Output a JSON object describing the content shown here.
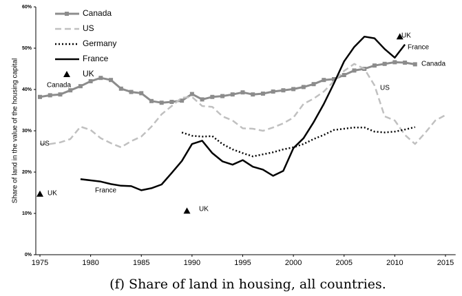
{
  "chart_data": {
    "type": "line",
    "ylabel": "Share of land in the value of the housing capital",
    "caption": "(f) Share of land in housing, all countries.",
    "xlim": [
      1975,
      2016
    ],
    "xticks": [
      1975,
      1980,
      1985,
      1990,
      1995,
      2000,
      2005,
      2010,
      2015
    ],
    "ylim": [
      0,
      60
    ],
    "yticks": [
      {
        "value": 0,
        "label": "0%"
      },
      {
        "value": 10,
        "label": "10%"
      },
      {
        "value": 20,
        "label": "20%"
      },
      {
        "value": 30,
        "label": "30%"
      },
      {
        "value": 40,
        "label": "40%"
      },
      {
        "value": 50,
        "label": "50%"
      },
      {
        "value": 60,
        "label": "60%"
      }
    ],
    "series": [
      {
        "name": "Canada",
        "color": "#8c8c8c",
        "style": "solid",
        "marker": "square",
        "x": [
          1975,
          1976,
          1977,
          1978,
          1979,
          1980,
          1981,
          1982,
          1983,
          1984,
          1985,
          1986,
          1987,
          1988,
          1989,
          1990,
          1991,
          1992,
          1993,
          1994,
          1995,
          1996,
          1997,
          1998,
          1999,
          2000,
          2001,
          2002,
          2003,
          2004,
          2005,
          2006,
          2007,
          2008,
          2009,
          2010,
          2011,
          2012
        ],
        "values": [
          38.2,
          38.6,
          38.8,
          39.8,
          40.8,
          42,
          42.8,
          42.3,
          40.2,
          39.4,
          39.1,
          37.2,
          36.8,
          37,
          37.3,
          38.9,
          37.6,
          38.2,
          38.4,
          38.8,
          39.3,
          38.8,
          39,
          39.5,
          39.8,
          40.1,
          40.6,
          41.3,
          42.3,
          42.5,
          43.5,
          44.6,
          45,
          45.8,
          46.2,
          46.6,
          46.5,
          46.1
        ]
      },
      {
        "name": "US",
        "color": "#c0c0c0",
        "style": "dashed",
        "marker": "none",
        "x": [
          1975,
          1976,
          1977,
          1978,
          1979,
          1980,
          1981,
          1982,
          1983,
          1984,
          1985,
          1986,
          1987,
          1988,
          1989,
          1990,
          1991,
          1992,
          1993,
          1994,
          1995,
          1996,
          1997,
          1998,
          1999,
          2000,
          2001,
          2002,
          2003,
          2004,
          2005,
          2006,
          2007,
          2008,
          2009,
          2010,
          2011,
          2012,
          2013,
          2014,
          2015
        ],
        "values": [
          26.8,
          26.8,
          27.2,
          28,
          31,
          30.2,
          28.2,
          27,
          26,
          27.5,
          28.6,
          31,
          34,
          36,
          38,
          38.2,
          36,
          35.8,
          33.5,
          32.5,
          30.6,
          30.5,
          30,
          30.8,
          31.8,
          33.2,
          36.5,
          37.8,
          39.5,
          42,
          44.5,
          46.2,
          45,
          41,
          33.5,
          32.5,
          29,
          26.8,
          29.5,
          32.5,
          33.8
        ]
      },
      {
        "name": "Germany",
        "color": "#000000",
        "style": "dotted",
        "marker": "none",
        "x": [
          1989,
          1990,
          1991,
          1992,
          1993,
          1994,
          1995,
          1996,
          1997,
          1998,
          1999,
          2000,
          2001,
          2002,
          2003,
          2004,
          2005,
          2006,
          2007,
          2008,
          2009,
          2010,
          2011,
          2012
        ],
        "values": [
          29.6,
          28.8,
          28.6,
          28.7,
          26.8,
          25.5,
          24.6,
          23.8,
          24.3,
          24.8,
          25.5,
          26,
          26.8,
          28,
          29,
          30.2,
          30.5,
          30.8,
          30.8,
          29.8,
          29.6,
          29.8,
          30.3,
          30.9
        ]
      },
      {
        "name": "France",
        "color": "#000000",
        "style": "solid",
        "marker": "none",
        "x": [
          1979,
          1980,
          1981,
          1982,
          1983,
          1984,
          1985,
          1986,
          1987,
          1988,
          1989,
          1990,
          1991,
          1992,
          1993,
          1994,
          1995,
          1996,
          1997,
          1998,
          1999,
          2000,
          2001,
          2002,
          2003,
          2004,
          2005,
          2006,
          2007,
          2008,
          2009,
          2010,
          2011
        ],
        "values": [
          18.3,
          18,
          17.7,
          17.1,
          16.7,
          16.6,
          15.6,
          16.1,
          17,
          19.8,
          22.7,
          26.8,
          27.6,
          24.6,
          22.6,
          21.8,
          22.9,
          21.3,
          20.6,
          19.1,
          20.3,
          25.8,
          28.2,
          32.1,
          36.5,
          41.5,
          46.8,
          50.3,
          52.8,
          52.4,
          49.8,
          47.7,
          50.9
        ]
      },
      {
        "name": "UK",
        "color": "#000000",
        "style": "none",
        "marker": "triangle",
        "x": [
          1975,
          1989.5,
          2010.5
        ],
        "values": [
          14.7,
          10.6,
          52.8
        ]
      }
    ],
    "annotations": [
      "Canada",
      "US",
      "France",
      "UK",
      "UK",
      "UK",
      "Canada",
      "France",
      "US"
    ]
  }
}
